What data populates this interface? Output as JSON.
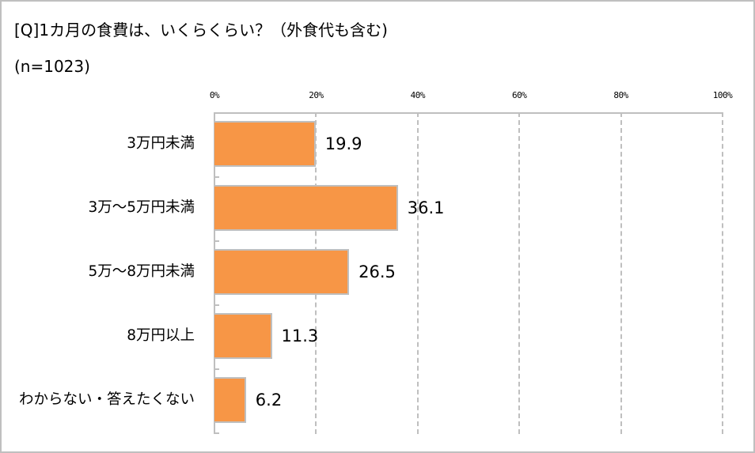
{
  "chart_data": {
    "type": "bar",
    "orientation": "horizontal",
    "title": "[Q]1カ月の食費は、いくらくらい？（外食代も含む)",
    "subtitle": "(n=1023)",
    "xlabel": "",
    "ylabel": "",
    "xlim": [
      0,
      100
    ],
    "x_ticks": [
      "0%",
      "20%",
      "40%",
      "60%",
      "80%",
      "100%"
    ],
    "x_axis_position": "top",
    "grid": true,
    "grid_style": "dashed",
    "legend": null,
    "bar_color": "#f79646",
    "categories": [
      "3万円未満",
      "3万～5万円未満",
      "5万～8万円未満",
      "8万円以上",
      "わからない・答えたくない"
    ],
    "values": [
      19.9,
      36.1,
      26.5,
      11.3,
      6.2
    ],
    "value_labels": [
      "19.9",
      "36.1",
      "26.5",
      "11.3",
      "6.2"
    ]
  },
  "colors": {
    "bar": "#f79646",
    "bar_border": "#bfbfbf",
    "grid": "#bfbfbf",
    "frame": "#bfbfbf",
    "text": "#000000"
  }
}
